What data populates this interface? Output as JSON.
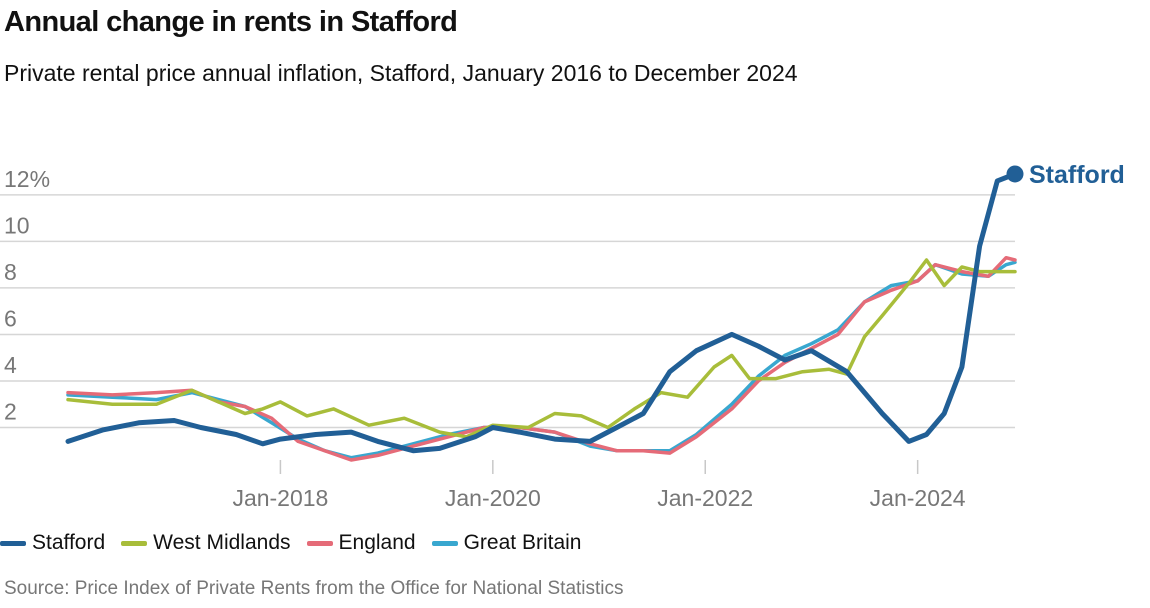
{
  "chart_data": {
    "type": "line",
    "title": "Annual change in rents in Stafford",
    "subtitle": "Private rental price annual inflation, Stafford, January 2016 to December 2024",
    "source": "Source: Price Index of Private Rents from the Office for National Statistics",
    "x_start": "2016-01",
    "x_end": "2024-12",
    "x_ticks": [
      {
        "month": "2018-01",
        "label": "Jan-2018"
      },
      {
        "month": "2020-01",
        "label": "Jan-2020"
      },
      {
        "month": "2022-01",
        "label": "Jan-2022"
      },
      {
        "month": "2024-01",
        "label": "Jan-2024"
      }
    ],
    "y_ticks": [
      {
        "value": 2,
        "label": "2"
      },
      {
        "value": 4,
        "label": "4"
      },
      {
        "value": 6,
        "label": "6"
      },
      {
        "value": 8,
        "label": "8"
      },
      {
        "value": 10,
        "label": "10"
      },
      {
        "value": 12,
        "label": "12%"
      }
    ],
    "ylim": [
      0,
      13.5
    ],
    "grid": true,
    "legend_position": "bottom",
    "end_label_series": "Stafford",
    "series": [
      {
        "name": "Stafford",
        "color": "#215f96",
        "points": [
          [
            "2016-01",
            1.4
          ],
          [
            "2016-05",
            1.9
          ],
          [
            "2016-09",
            2.2
          ],
          [
            "2017-01",
            2.3
          ],
          [
            "2017-04",
            2.0
          ],
          [
            "2017-08",
            1.7
          ],
          [
            "2017-11",
            1.3
          ],
          [
            "2018-01",
            1.5
          ],
          [
            "2018-05",
            1.7
          ],
          [
            "2018-09",
            1.8
          ],
          [
            "2018-12",
            1.4
          ],
          [
            "2019-04",
            1.0
          ],
          [
            "2019-07",
            1.1
          ],
          [
            "2019-11",
            1.6
          ],
          [
            "2020-01",
            2.0
          ],
          [
            "2020-04",
            1.8
          ],
          [
            "2020-08",
            1.5
          ],
          [
            "2020-12",
            1.4
          ],
          [
            "2021-03",
            2.0
          ],
          [
            "2021-06",
            2.6
          ],
          [
            "2021-09",
            4.4
          ],
          [
            "2021-12",
            5.3
          ],
          [
            "2022-04",
            6.0
          ],
          [
            "2022-07",
            5.5
          ],
          [
            "2022-10",
            4.9
          ],
          [
            "2023-01",
            5.3
          ],
          [
            "2023-05",
            4.4
          ],
          [
            "2023-09",
            2.6
          ],
          [
            "2023-12",
            1.4
          ],
          [
            "2024-02",
            1.7
          ],
          [
            "2024-04",
            2.6
          ],
          [
            "2024-06",
            4.6
          ],
          [
            "2024-08",
            9.8
          ],
          [
            "2024-10",
            12.6
          ],
          [
            "2024-12",
            12.9
          ]
        ]
      },
      {
        "name": "West Midlands",
        "color": "#a8bd3a",
        "points": [
          [
            "2016-01",
            3.2
          ],
          [
            "2016-06",
            3.0
          ],
          [
            "2016-11",
            3.0
          ],
          [
            "2017-03",
            3.6
          ],
          [
            "2017-06",
            3.1
          ],
          [
            "2017-09",
            2.6
          ],
          [
            "2017-11",
            2.8
          ],
          [
            "2018-01",
            3.1
          ],
          [
            "2018-04",
            2.5
          ],
          [
            "2018-07",
            2.8
          ],
          [
            "2018-11",
            2.1
          ],
          [
            "2019-03",
            2.4
          ],
          [
            "2019-07",
            1.8
          ],
          [
            "2019-10",
            1.6
          ],
          [
            "2020-01",
            2.1
          ],
          [
            "2020-05",
            2.0
          ],
          [
            "2020-08",
            2.6
          ],
          [
            "2020-11",
            2.5
          ],
          [
            "2021-02",
            2.0
          ],
          [
            "2021-05",
            2.8
          ],
          [
            "2021-08",
            3.5
          ],
          [
            "2021-11",
            3.3
          ],
          [
            "2022-02",
            4.6
          ],
          [
            "2022-04",
            5.1
          ],
          [
            "2022-06",
            4.1
          ],
          [
            "2022-09",
            4.1
          ],
          [
            "2022-12",
            4.4
          ],
          [
            "2023-03",
            4.5
          ],
          [
            "2023-05",
            4.3
          ],
          [
            "2023-07",
            5.9
          ],
          [
            "2023-09",
            6.8
          ],
          [
            "2023-12",
            8.2
          ],
          [
            "2024-02",
            9.2
          ],
          [
            "2024-04",
            8.1
          ],
          [
            "2024-06",
            8.9
          ],
          [
            "2024-08",
            8.7
          ],
          [
            "2024-12",
            8.7
          ]
        ]
      },
      {
        "name": "England",
        "color": "#e56b78",
        "points": [
          [
            "2016-01",
            3.5
          ],
          [
            "2016-06",
            3.4
          ],
          [
            "2016-11",
            3.5
          ],
          [
            "2017-03",
            3.6
          ],
          [
            "2017-06",
            3.1
          ],
          [
            "2017-09",
            2.9
          ],
          [
            "2017-12",
            2.4
          ],
          [
            "2018-03",
            1.4
          ],
          [
            "2018-06",
            1.0
          ],
          [
            "2018-09",
            0.6
          ],
          [
            "2018-12",
            0.8
          ],
          [
            "2019-04",
            1.2
          ],
          [
            "2019-08",
            1.6
          ],
          [
            "2019-12",
            2.0
          ],
          [
            "2020-04",
            2.0
          ],
          [
            "2020-08",
            1.8
          ],
          [
            "2020-12",
            1.3
          ],
          [
            "2021-03",
            1.0
          ],
          [
            "2021-06",
            1.0
          ],
          [
            "2021-09",
            0.9
          ],
          [
            "2021-12",
            1.6
          ],
          [
            "2022-04",
            2.8
          ],
          [
            "2022-07",
            4.0
          ],
          [
            "2022-10",
            4.8
          ],
          [
            "2023-01",
            5.4
          ],
          [
            "2023-04",
            6.0
          ],
          [
            "2023-07",
            7.4
          ],
          [
            "2023-10",
            7.9
          ],
          [
            "2024-01",
            8.3
          ],
          [
            "2024-03",
            9.0
          ],
          [
            "2024-06",
            8.7
          ],
          [
            "2024-09",
            8.5
          ],
          [
            "2024-11",
            9.3
          ],
          [
            "2024-12",
            9.2
          ]
        ]
      },
      {
        "name": "Great Britain",
        "color": "#39a7cf",
        "points": [
          [
            "2016-01",
            3.4
          ],
          [
            "2016-06",
            3.3
          ],
          [
            "2016-11",
            3.2
          ],
          [
            "2017-03",
            3.5
          ],
          [
            "2017-06",
            3.2
          ],
          [
            "2017-09",
            2.9
          ],
          [
            "2017-12",
            2.2
          ],
          [
            "2018-03",
            1.5
          ],
          [
            "2018-06",
            1.0
          ],
          [
            "2018-09",
            0.7
          ],
          [
            "2018-12",
            0.9
          ],
          [
            "2019-04",
            1.3
          ],
          [
            "2019-08",
            1.7
          ],
          [
            "2019-12",
            2.0
          ],
          [
            "2020-04",
            2.0
          ],
          [
            "2020-08",
            1.8
          ],
          [
            "2020-12",
            1.2
          ],
          [
            "2021-03",
            1.0
          ],
          [
            "2021-06",
            1.0
          ],
          [
            "2021-09",
            1.0
          ],
          [
            "2021-12",
            1.7
          ],
          [
            "2022-04",
            3.0
          ],
          [
            "2022-07",
            4.2
          ],
          [
            "2022-10",
            5.1
          ],
          [
            "2023-01",
            5.6
          ],
          [
            "2023-04",
            6.2
          ],
          [
            "2023-07",
            7.4
          ],
          [
            "2023-10",
            8.1
          ],
          [
            "2024-01",
            8.3
          ],
          [
            "2024-03",
            9.0
          ],
          [
            "2024-06",
            8.6
          ],
          [
            "2024-09",
            8.5
          ],
          [
            "2024-11",
            9.0
          ],
          [
            "2024-12",
            9.1
          ]
        ]
      }
    ]
  }
}
